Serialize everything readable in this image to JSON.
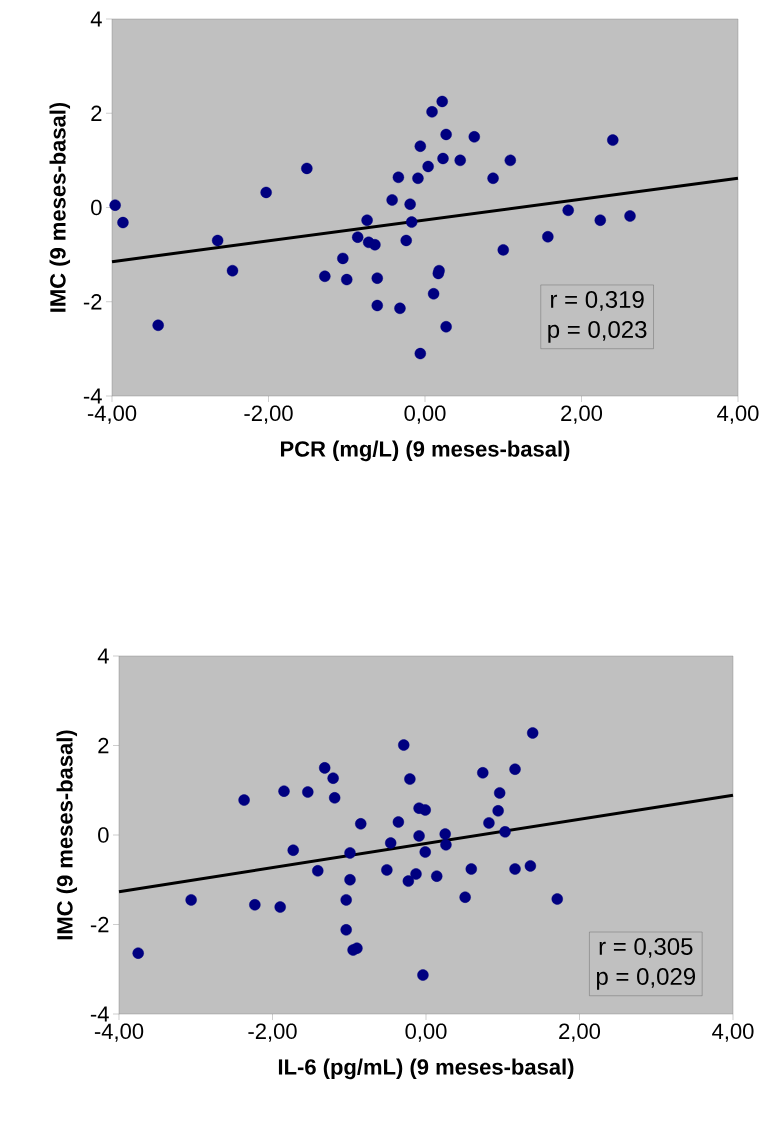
{
  "chart_data": [
    {
      "type": "scatter",
      "xlabel": "PCR (mg/L) (9 meses-basal)",
      "ylabel": "IMC (9 meses-basal)",
      "xlim": [
        -4,
        4
      ],
      "ylim": [
        -4,
        4
      ],
      "xticks": [
        {
          "value": -4,
          "label": "-4,00"
        },
        {
          "value": -2,
          "label": "-2,00"
        },
        {
          "value": 0,
          "label": "0,00"
        },
        {
          "value": 2,
          "label": "2,00"
        },
        {
          "value": 4,
          "label": "4,00"
        }
      ],
      "yticks": [
        -4,
        -2,
        0,
        2,
        4
      ],
      "grid": false,
      "series": [
        {
          "color": "#000080",
          "marker": "circle",
          "x": [
            -3.96,
            -3.86,
            -3.41,
            -2.65,
            -2.46,
            -2.03,
            -1.51,
            -1.28,
            -1.05,
            -1.0,
            -0.86,
            -0.74,
            -0.72,
            -0.64,
            -0.61,
            -0.61,
            -0.42,
            -0.34,
            -0.32,
            -0.24,
            -0.19,
            -0.17,
            -0.09,
            -0.06,
            -0.06,
            0.04,
            0.09,
            0.11,
            0.17,
            0.18,
            0.22,
            0.23,
            0.27,
            0.27,
            0.45,
            0.63,
            0.87,
            1.0,
            1.09,
            1.57,
            1.83,
            2.24,
            2.4,
            2.62
          ],
          "values": [
            0.05,
            -0.32,
            -2.5,
            -0.7,
            -1.34,
            0.32,
            0.83,
            -1.46,
            -1.08,
            -1.53,
            -0.63,
            -0.27,
            -0.74,
            -0.79,
            -1.5,
            -2.08,
            0.16,
            0.64,
            -2.14,
            -0.7,
            0.07,
            -0.31,
            0.62,
            1.3,
            -3.1,
            0.87,
            2.03,
            -1.83,
            -1.4,
            -1.34,
            2.25,
            1.04,
            1.55,
            -2.53,
            1.0,
            1.5,
            0.62,
            -0.9,
            1.0,
            -0.62,
            -0.06,
            -0.27,
            1.43,
            -0.18
          ]
        },
        {
          "type": "line",
          "color": "#000000",
          "marker": "none",
          "x": [
            -4,
            4
          ],
          "values": [
            -1.15,
            0.62
          ]
        }
      ],
      "annotations": [
        "r = 0,319",
        "p = 0,023"
      ]
    },
    {
      "type": "scatter",
      "xlabel": "IL-6 (pg/mL) (9 meses-basal)",
      "ylabel": "IMC (9 meses-basal)",
      "xlim": [
        -4,
        4
      ],
      "ylim": [
        -4,
        4
      ],
      "xticks": [
        {
          "value": -4,
          "label": "-4,00"
        },
        {
          "value": -2,
          "label": "-2,00"
        },
        {
          "value": 0,
          "label": "0,00"
        },
        {
          "value": 2,
          "label": "2,00"
        },
        {
          "value": 4,
          "label": "4,00"
        }
      ],
      "yticks": [
        -4,
        -2,
        0,
        2,
        4
      ],
      "grid": false,
      "series": [
        {
          "color": "#000080",
          "marker": "circle",
          "x": [
            -3.75,
            -3.06,
            -2.37,
            -2.23,
            -1.9,
            -1.85,
            -1.73,
            -1.54,
            -1.41,
            -1.32,
            -1.21,
            -1.19,
            -1.04,
            -1.04,
            -0.99,
            -0.99,
            -0.95,
            -0.9,
            -0.85,
            -0.51,
            -0.46,
            -0.36,
            -0.29,
            -0.21,
            -0.23,
            -0.13,
            -0.09,
            -0.09,
            -0.01,
            -0.01,
            -0.04,
            0.14,
            0.25,
            0.26,
            0.51,
            0.59,
            0.74,
            0.82,
            0.94,
            0.96,
            1.03,
            1.16,
            1.16,
            1.36,
            1.39,
            1.71
          ],
          "values": [
            -2.64,
            -1.45,
            0.78,
            -1.56,
            -1.61,
            0.98,
            -0.34,
            0.96,
            -0.8,
            1.5,
            1.27,
            0.83,
            -1.45,
            -2.12,
            -1.0,
            -0.4,
            -2.57,
            -2.53,
            0.25,
            -0.78,
            -0.18,
            0.29,
            2.01,
            1.25,
            -1.03,
            -0.87,
            0.6,
            -0.02,
            0.56,
            -0.38,
            -3.13,
            -0.92,
            0.02,
            -0.22,
            -1.39,
            -0.76,
            1.39,
            0.27,
            0.54,
            0.94,
            0.07,
            -0.76,
            1.47,
            -0.69,
            2.28,
            -1.43
          ]
        },
        {
          "type": "line",
          "color": "#000000",
          "marker": "none",
          "x": [
            -4,
            4
          ],
          "values": [
            -1.27,
            0.89
          ]
        }
      ],
      "annotations": [
        "r = 0,305",
        "p = 0,029"
      ]
    }
  ]
}
